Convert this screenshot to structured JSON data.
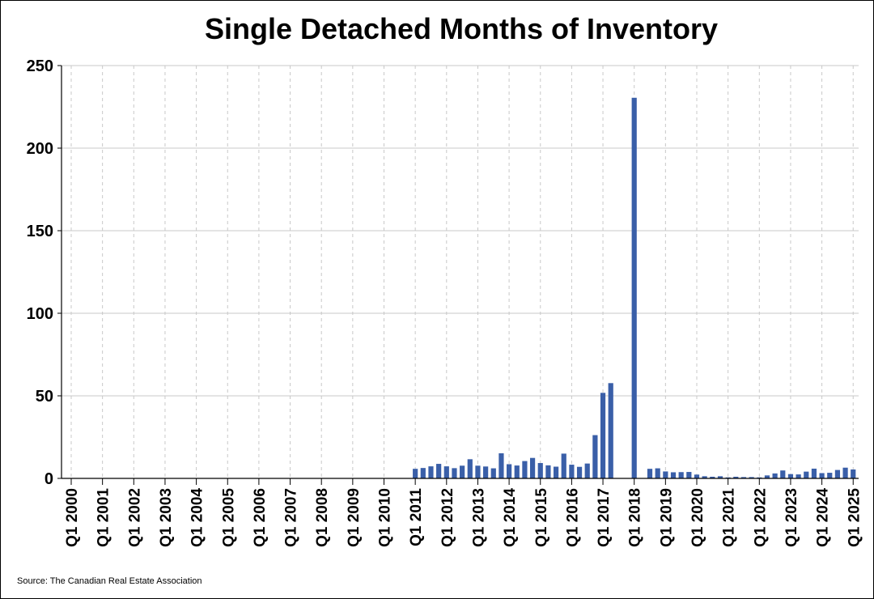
{
  "chart_data": {
    "type": "bar",
    "title": "Single Detached Months of Inventory",
    "source": "Source: The Canadian Real Estate Association",
    "ylim": [
      0,
      250
    ],
    "yticks": [
      0,
      50,
      100,
      150,
      200,
      250
    ],
    "grid": {
      "horizontal": true,
      "vertical_dashed": true
    },
    "bar_color": "#3a5fa8",
    "x_tick_labels": [
      "Q1 2000",
      "Q1 2001",
      "Q1 2002",
      "Q1 2003",
      "Q1 2004",
      "Q1 2005",
      "Q1 2006",
      "Q1 2007",
      "Q1 2008",
      "Q1 2009",
      "Q1 2010",
      "Q1 2011",
      "Q1 2012",
      "Q1 2013",
      "Q1 2014",
      "Q1 2015",
      "Q1 2016",
      "Q1 2017",
      "Q1 2018",
      "Q1 2019",
      "Q1 2020",
      "Q1 2021",
      "Q1 2022",
      "Q1 2023",
      "Q1 2024",
      "Q1 2025"
    ],
    "categories": [
      "Q1 2011",
      "Q2 2011",
      "Q3 2011",
      "Q4 2011",
      "Q1 2012",
      "Q2 2012",
      "Q3 2012",
      "Q4 2012",
      "Q1 2013",
      "Q2 2013",
      "Q3 2013",
      "Q4 2013",
      "Q1 2014",
      "Q2 2014",
      "Q3 2014",
      "Q4 2014",
      "Q1 2015",
      "Q2 2015",
      "Q3 2015",
      "Q4 2015",
      "Q1 2016",
      "Q2 2016",
      "Q3 2016",
      "Q4 2016",
      "Q1 2017",
      "Q2 2017",
      "Q3 2017",
      "Q4 2017",
      "Q1 2018",
      "Q2 2018",
      "Q3 2018",
      "Q4 2018",
      "Q1 2019",
      "Q2 2019",
      "Q3 2019",
      "Q4 2019",
      "Q1 2020",
      "Q2 2020",
      "Q3 2020",
      "Q4 2020",
      "Q1 2021",
      "Q2 2021",
      "Q3 2021",
      "Q4 2021",
      "Q1 2022",
      "Q2 2022",
      "Q3 2022",
      "Q4 2022",
      "Q1 2023",
      "Q2 2023",
      "Q3 2023",
      "Q4 2023",
      "Q1 2024",
      "Q2 2024",
      "Q3 2024",
      "Q4 2024",
      "Q1 2025"
    ],
    "values": [
      5.8,
      6.3,
      7.3,
      8.8,
      7.3,
      6.2,
      7.7,
      11.6,
      7.7,
      7.2,
      6.1,
      15.2,
      8.6,
      7.8,
      10.5,
      12.4,
      9.3,
      7.9,
      7.1,
      15.0,
      8.3,
      7.0,
      9.0,
      26.2,
      51.8,
      57.7,
      null,
      null,
      230.5,
      null,
      5.8,
      6.1,
      4.2,
      3.7,
      3.8,
      3.9,
      2.3,
      1.3,
      1.0,
      1.3,
      0.6,
      1.0,
      0.8,
      0.8,
      0.6,
      1.8,
      3.0,
      4.8,
      2.6,
      2.4,
      4.1,
      5.9,
      3.2,
      3.4,
      5.1,
      6.5,
      5.4
    ]
  }
}
